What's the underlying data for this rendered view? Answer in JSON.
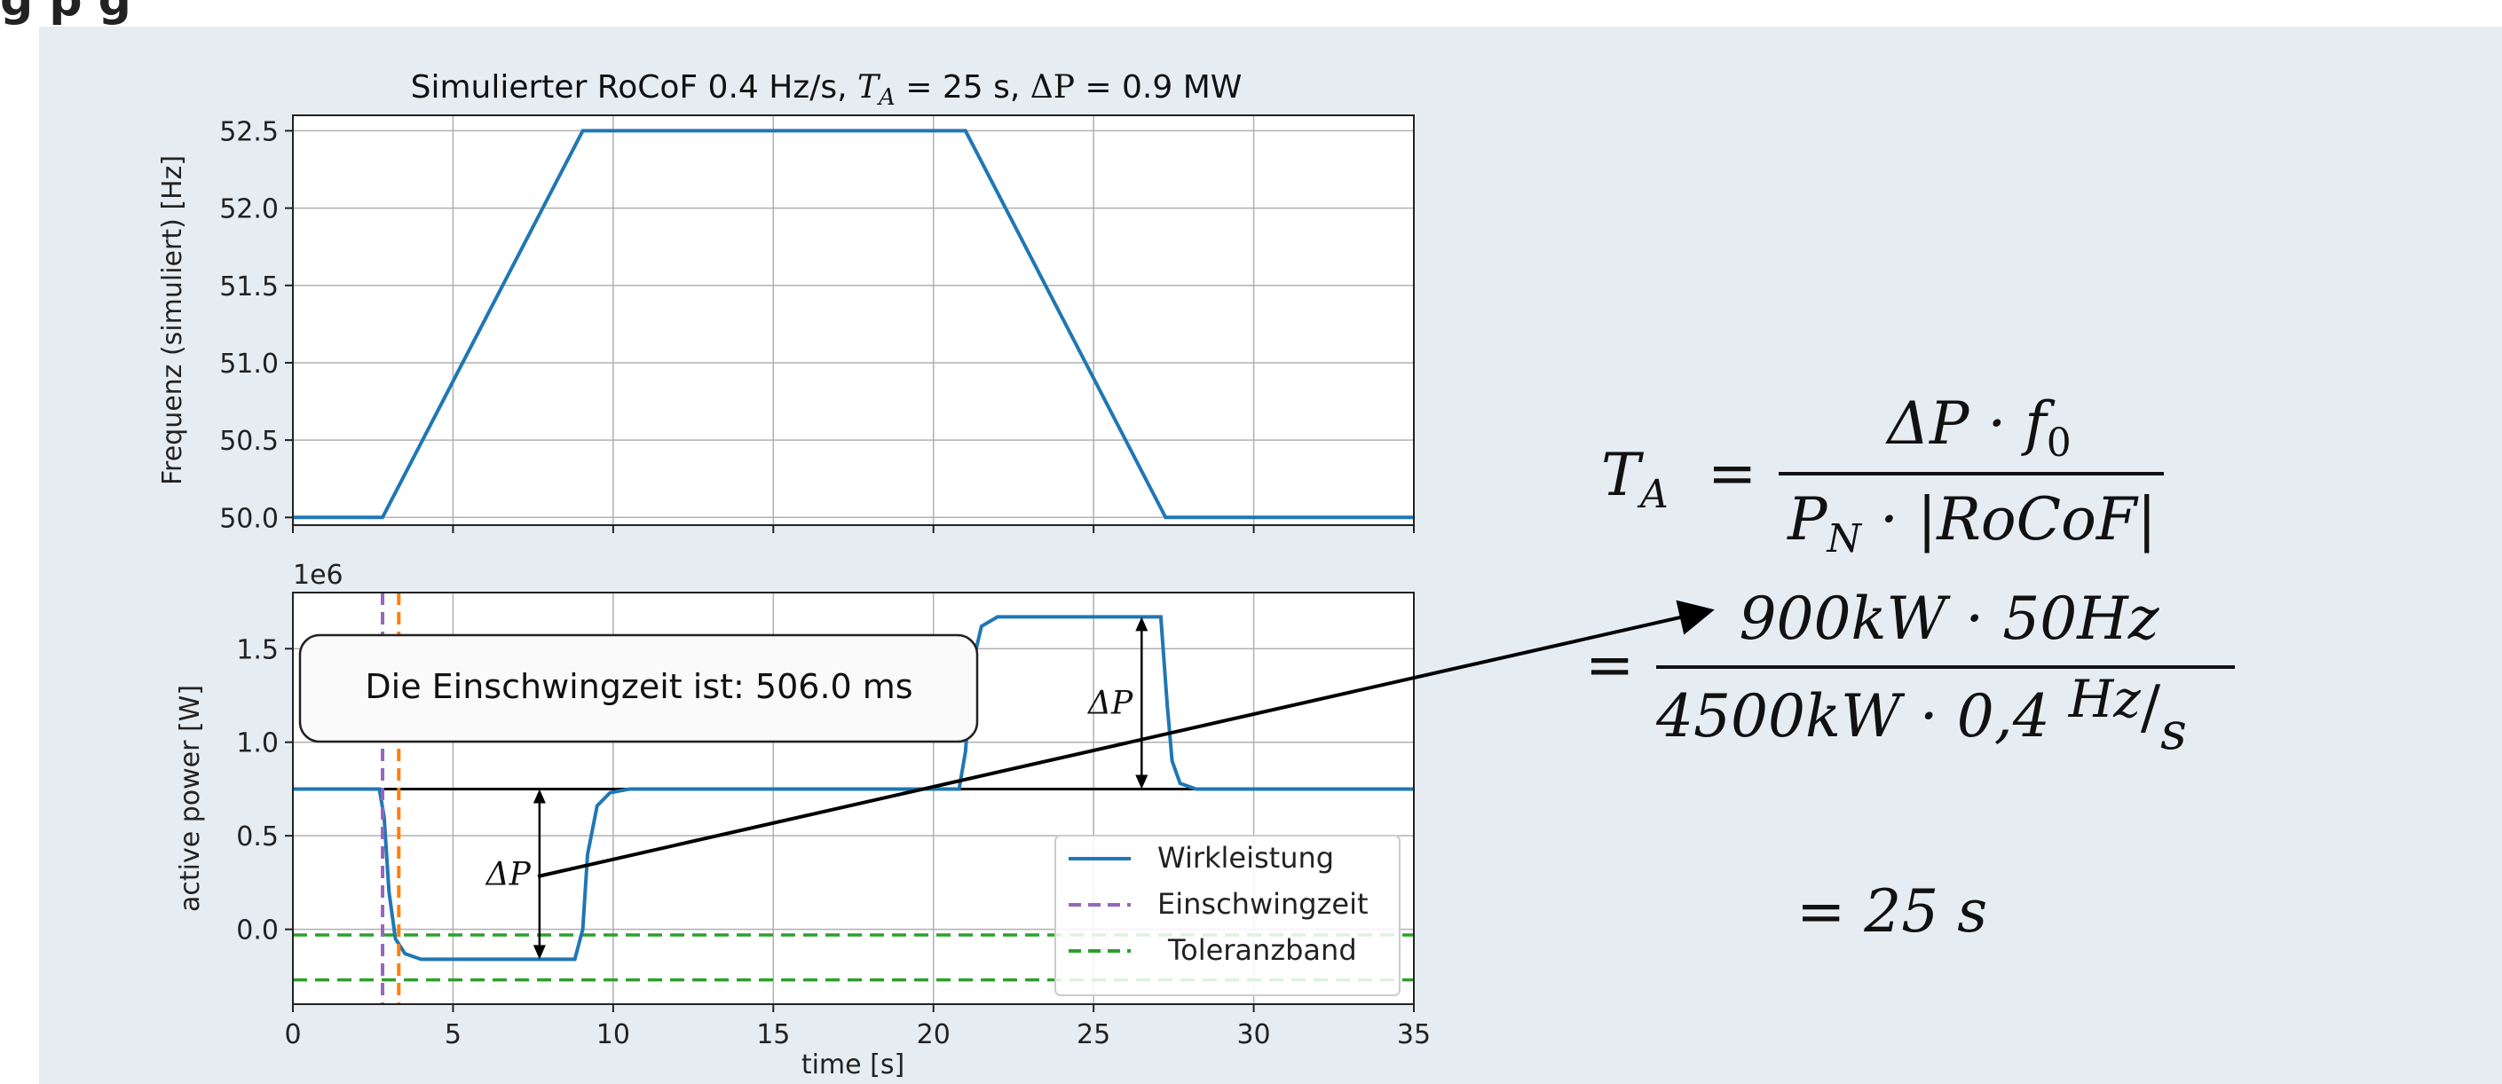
{
  "top_strip_text": "g                                    p                          g",
  "chart_data": [
    {
      "type": "line",
      "title": "Simulierter RoCoF 0.4 Hz/s, T_A = 25 s, ΔP = 0.9 MW",
      "title_parts": {
        "a": "Simulierter RoCoF 0.4 Hz/s, ",
        "b": "T",
        "b_sub": "A",
        "c": " = 25 s, ",
        "d": "ΔP",
        "e": " = 0.9 MW"
      },
      "ylabel": "Frequenz (simuliert) [Hz]",
      "xlim": [
        0,
        35
      ],
      "ylim": [
        49.95,
        52.6
      ],
      "xticks": [
        0,
        5,
        10,
        15,
        20,
        25,
        30,
        35
      ],
      "yticks": [
        50.0,
        50.5,
        51.0,
        51.5,
        52.0,
        52.5
      ],
      "ytick_labels": [
        "50.0",
        "50.5",
        "51.0",
        "51.5",
        "52.0",
        "52.5"
      ],
      "grid": true,
      "color": "#1f77b4",
      "x": [
        0,
        2.8,
        9.05,
        21.0,
        27.25,
        35
      ],
      "y": [
        50.0,
        50.0,
        52.5,
        52.5,
        50.0,
        50.0
      ]
    },
    {
      "type": "line",
      "ylabel": "active power [W]",
      "xlabel": "time [s]",
      "offset_label": "1e6",
      "xlim": [
        0,
        35
      ],
      "ylim": [
        -0.4,
        1.8
      ],
      "xticks": [
        0,
        5,
        10,
        15,
        20,
        25,
        30,
        35
      ],
      "xtick_labels": [
        "0",
        "5",
        "10",
        "15",
        "20",
        "25",
        "30",
        "35"
      ],
      "yticks": [
        0.0,
        0.5,
        1.0,
        1.5
      ],
      "ytick_labels": [
        "0.0",
        "0.5",
        "1.0",
        "1.5"
      ],
      "grid": true,
      "series": [
        {
          "name": "Wirkleistung",
          "color": "#1f77b4",
          "style": "solid",
          "x": [
            0,
            2.7,
            2.85,
            3.0,
            3.2,
            3.5,
            4.0,
            8.8,
            9.05,
            9.2,
            9.5,
            9.9,
            10.5,
            20.8,
            21.0,
            21.2,
            21.5,
            22.0,
            27.1,
            27.3,
            27.45,
            27.7,
            28.2,
            35
          ],
          "y": [
            0.75,
            0.75,
            0.6,
            0.2,
            -0.05,
            -0.13,
            -0.16,
            -0.16,
            0.0,
            0.4,
            0.66,
            0.73,
            0.75,
            0.75,
            0.95,
            1.4,
            1.62,
            1.67,
            1.67,
            1.2,
            0.9,
            0.78,
            0.75,
            0.75
          ]
        },
        {
          "name": "Einschwingzeit",
          "color": "#9467bd",
          "style": "dashed",
          "x": 2.8
        },
        {
          "name": "",
          "color": "#ff7f0e",
          "style": "dashed",
          "x": 3.306
        },
        {
          "name": "Toleranzband",
          "color": "#2ca02c",
          "style": "dashed",
          "y": [
            -0.03,
            -0.27
          ]
        }
      ],
      "reference_line_y": 0.75,
      "delta_left": {
        "x": 7.7,
        "y_top": 0.75,
        "y_bottom": -0.16,
        "label": "ΔP"
      },
      "delta_right": {
        "x": 26.5,
        "y_top": 1.67,
        "y_bottom": 0.75,
        "label": "ΔP"
      },
      "annotation_box": "Die Einschwingzeit ist: 506.0 ms",
      "legend_position": "lower-right",
      "legend": [
        "Wirkleistung",
        "Einschwingzeit",
        "Toleranzband"
      ]
    }
  ],
  "formula": {
    "lhs_T": "T",
    "lhs_sub": "A",
    "eq": "=",
    "num1": "ΔP · f",
    "num1_sub": "0",
    "den1": "P",
    "den1_sub": "N",
    "den1_rest": " · |RoCoF|",
    "num2": "900kW · 50Hz",
    "den2": "4500kW · 0,4 ",
    "den2_unit_num": "Hz",
    "den2_unit_den": "s",
    "result": "= 25 s"
  }
}
